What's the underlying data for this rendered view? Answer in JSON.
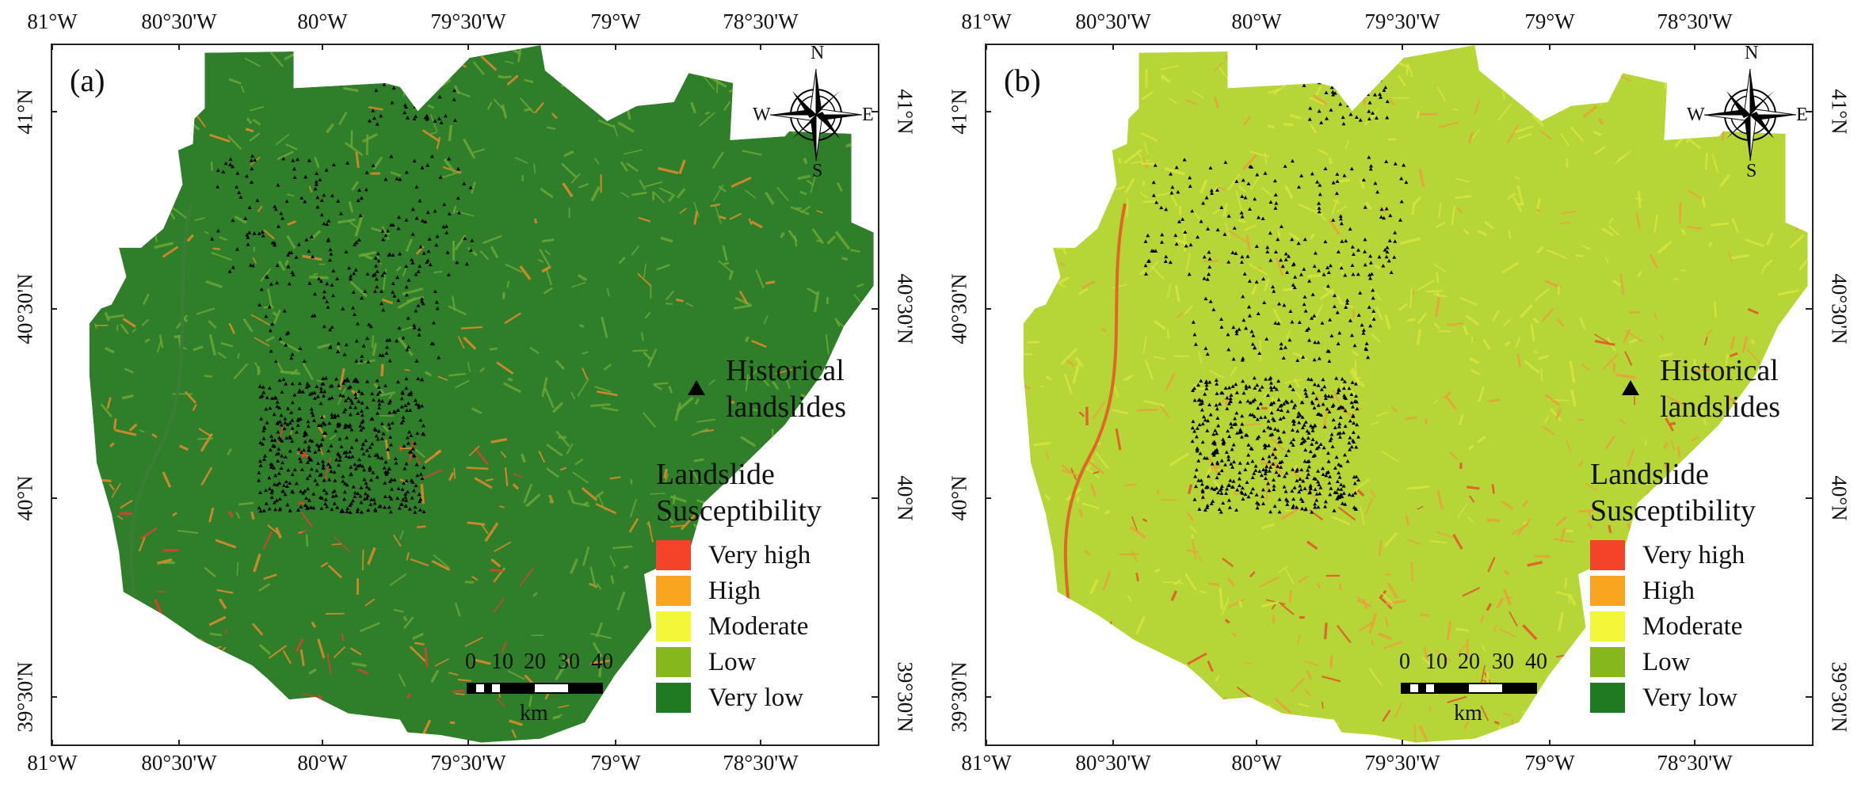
{
  "panels": [
    {
      "id": "a",
      "label": "(a)",
      "colors": {
        "bg": "#2f7f2a",
        "mid": "#6aa836",
        "accent": "#e58a2a",
        "hot": "#e0402a"
      },
      "style": "green"
    },
    {
      "id": "b",
      "label": "(b)",
      "colors": {
        "bg": "#b6d638",
        "mid": "#d7e63e",
        "accent": "#e9a23a",
        "hot": "#e4532b"
      },
      "style": "yellow"
    }
  ],
  "axes": {
    "top_ticks": [
      "81°W",
      "80°30'W",
      "80°W",
      "79°30'W",
      "79°W",
      "78°30'W"
    ],
    "bottom_ticks": [
      "81°W",
      "80°30'W",
      "80°W",
      "79°30'W",
      "79°W",
      "78°30'W"
    ],
    "left_ticks": [
      "41°N",
      "40°30'N",
      "40°N",
      "39°30'N"
    ],
    "right_ticks": [
      "41°N",
      "40°30'N",
      "40°N",
      "39°30'N"
    ]
  },
  "compass": {
    "n": "N",
    "s": "S",
    "e": "E",
    "w": "W"
  },
  "legend": {
    "historical_line1": "Historical",
    "historical_line2": "landslides",
    "susceptibility_line1": "Landslide",
    "susceptibility_line2": "Susceptibility",
    "classes": [
      {
        "label": "Very high",
        "color": "#f5432a"
      },
      {
        "label": "High",
        "color": "#f9a520"
      },
      {
        "label": "Moderate",
        "color": "#f2f73a"
      },
      {
        "label": "Low",
        "color": "#86b81e"
      },
      {
        "label": "Very low",
        "color": "#1f7a22"
      }
    ]
  },
  "scale_bar": {
    "ticks": [
      "0",
      "10",
      "20",
      "30",
      "40"
    ],
    "unit": "km"
  }
}
